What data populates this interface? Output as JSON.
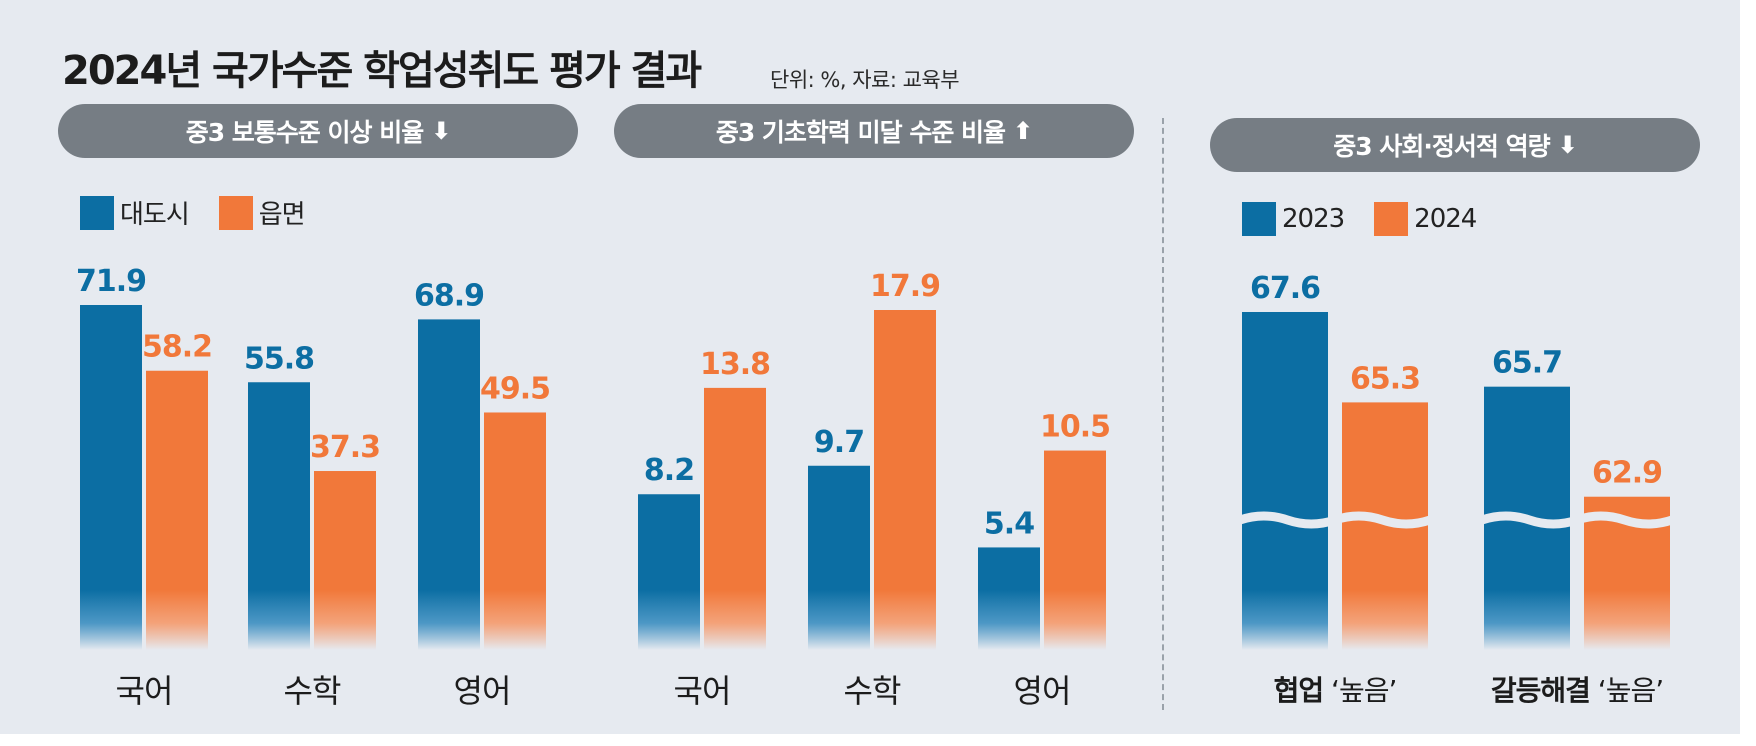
{
  "title": "2024년 국가수준 학업성취도 평가 결과",
  "unit_note": "단위: %, 자료: 교육부",
  "colors": {
    "blue": "#0c6ea3",
    "orange": "#f1783a",
    "pill": "#767d84",
    "background": "#e6eaf0"
  },
  "panels": [
    {
      "title": "중3 보통수준 이상 비율",
      "arrow": "⬇"
    },
    {
      "title": "중3 기초학력 미달 수준 비율",
      "arrow": "⬆"
    },
    {
      "title": "중3 사회·정서적 역량",
      "arrow": "⬇"
    }
  ],
  "legends": [
    {
      "a": "대도시",
      "b": "읍면"
    },
    {
      "a": "2023",
      "b": "2024"
    }
  ],
  "chart_data": [
    {
      "type": "bar",
      "title": "중3 보통수준 이상 비율",
      "categories": [
        "국어",
        "수학",
        "영어"
      ],
      "series": [
        {
          "name": "대도시",
          "values": [
            71.9,
            55.8,
            68.9
          ]
        },
        {
          "name": "읍면",
          "values": [
            58.2,
            37.3,
            49.5
          ]
        }
      ],
      "ylabel": "%",
      "grid": false,
      "legend": "top-left"
    },
    {
      "type": "bar",
      "title": "중3 기초학력 미달 수준 비율",
      "categories": [
        "국어",
        "수학",
        "영어"
      ],
      "series": [
        {
          "name": "대도시",
          "values": [
            8.2,
            9.7,
            5.4
          ]
        },
        {
          "name": "읍면",
          "values": [
            13.8,
            17.9,
            10.5
          ]
        }
      ],
      "ylabel": "%",
      "grid": false,
      "legend": "none"
    },
    {
      "type": "bar",
      "title": "중3 사회·정서적 역량",
      "categories": [
        {
          "bold": "협업",
          "suffix": " ‘높음’"
        },
        {
          "bold": "갈등해결",
          "suffix": " ‘높음’"
        }
      ],
      "series": [
        {
          "name": "2023",
          "values": [
            67.6,
            65.7
          ]
        },
        {
          "name": "2024",
          "values": [
            65.3,
            62.9
          ]
        }
      ],
      "ylabel": "%",
      "axis_break": true,
      "grid": false,
      "legend": "top-left"
    }
  ]
}
